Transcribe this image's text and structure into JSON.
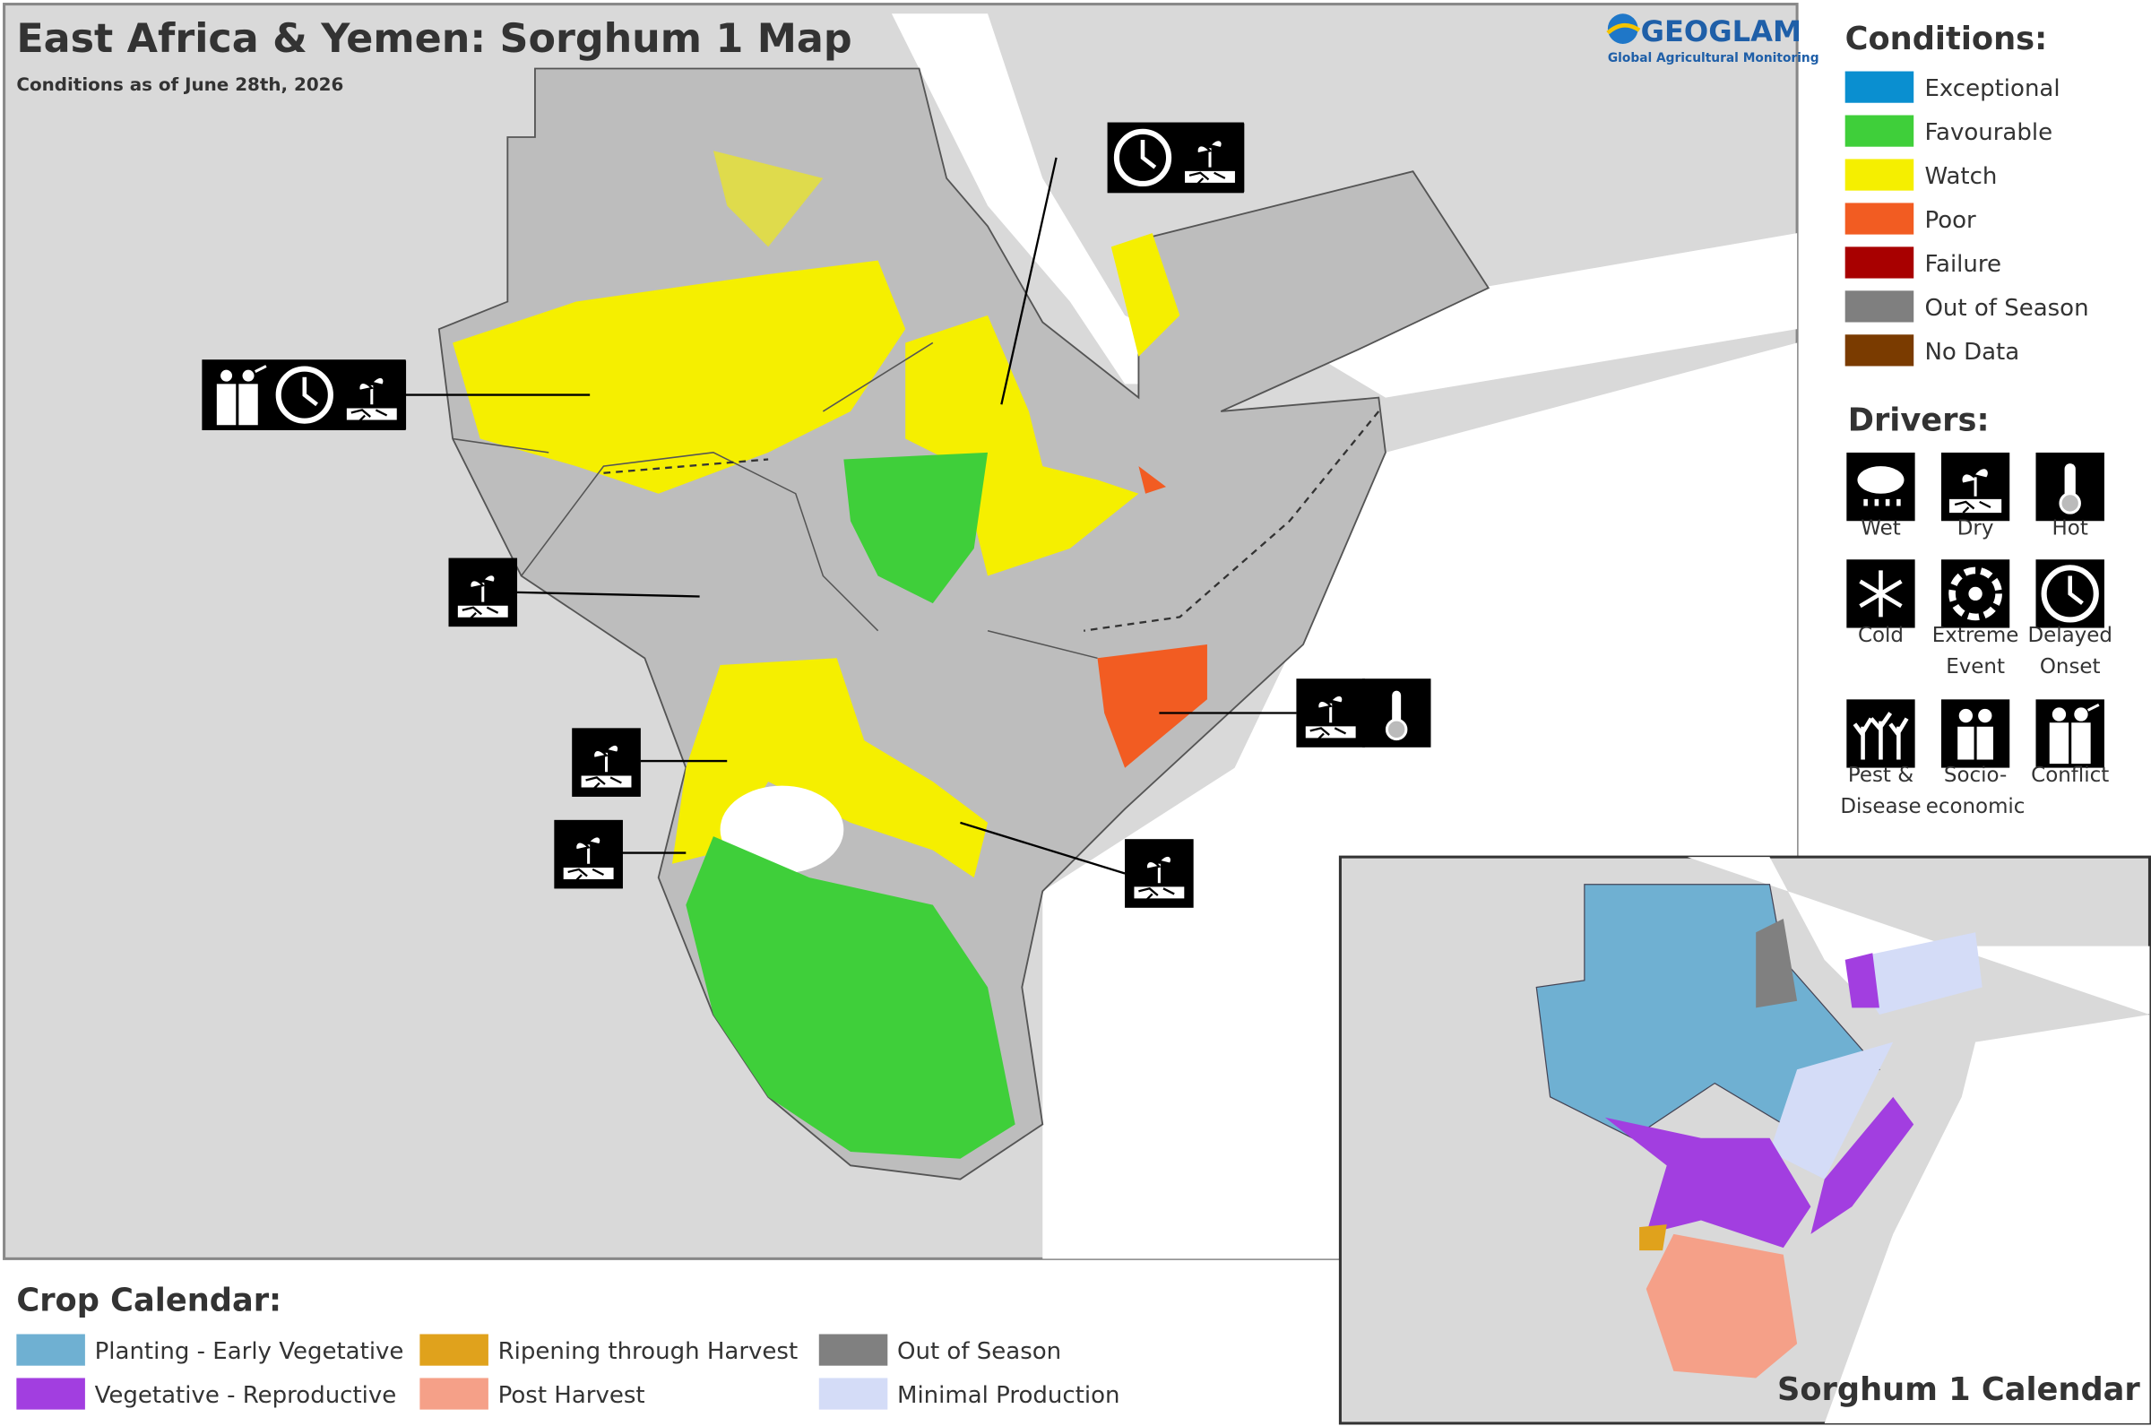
{
  "header": {
    "title": "East Africa & Yemen: Sorghum 1 Map",
    "subtitle": "Conditions as of June 28th, 2026"
  },
  "logo": {
    "name": "GEOGLAM",
    "tagline": "Global Agricultural Monitoring"
  },
  "conditions": {
    "title": "Conditions:",
    "items": [
      {
        "label": "Exceptional",
        "color": "#0a8fd0"
      },
      {
        "label": "Favourable",
        "color": "#3fcf3a"
      },
      {
        "label": "Watch",
        "color": "#f5ef00"
      },
      {
        "label": "Poor",
        "color": "#f25c22"
      },
      {
        "label": "Failure",
        "color": "#a80000"
      },
      {
        "label": "Out of Season",
        "color": "#7f7f7f"
      },
      {
        "label": "No Data",
        "color": "#7a3b00"
      }
    ]
  },
  "drivers": {
    "title": "Drivers:",
    "items": [
      {
        "lines": [
          "Wet"
        ]
      },
      {
        "lines": [
          "Dry"
        ]
      },
      {
        "lines": [
          "Hot"
        ]
      },
      {
        "lines": [
          "Cold"
        ]
      },
      {
        "lines": [
          "Extreme",
          "Event"
        ]
      },
      {
        "lines": [
          "Delayed",
          "Onset"
        ]
      },
      {
        "lines": [
          "Pest &",
          "Disease"
        ]
      },
      {
        "lines": [
          "Socio-",
          "economic"
        ]
      },
      {
        "lines": [
          "Conflict"
        ]
      }
    ]
  },
  "crop_calendar": {
    "title": "Crop Calendar:",
    "items": [
      {
        "label": "Planting - Early Vegetative",
        "color": "#6fb0d2"
      },
      {
        "label": "Vegetative - Reproductive",
        "color": "#a23ee0"
      },
      {
        "label": "Ripening through Harvest",
        "color": "#e0a21c"
      },
      {
        "label": "Post Harvest",
        "color": "#f5a088"
      },
      {
        "label": "Out of Season",
        "color": "#808080"
      },
      {
        "label": "Minimal Production",
        "color": "#d4dcf7"
      }
    ]
  },
  "inset": {
    "title": "Sorghum 1 Calendar"
  }
}
